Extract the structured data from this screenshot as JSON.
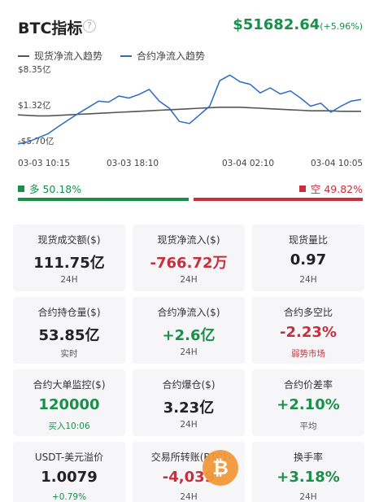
{
  "header": {
    "title": "BTC指标",
    "help_glyph": "?",
    "price": "$51682.64",
    "change": "(+5.96%)"
  },
  "legend": [
    {
      "label": "现货净流入趋势",
      "color": "#555555"
    },
    {
      "label": "合约净流入趋势",
      "color": "#2a6bc4"
    }
  ],
  "chart_data": {
    "type": "line",
    "y_tick_labels": [
      "$8.35亿",
      "$1.32亿",
      "-$5.70亿"
    ],
    "ylim": [
      -5.7,
      8.35
    ],
    "x_tick_labels": [
      "03-03 10:15",
      "03-03 18:10",
      "03-04 02:10",
      "03-04 10:05"
    ],
    "series": [
      {
        "name": "现货净流入趋势",
        "color": "#555555",
        "values": [
          0.5,
          0.4,
          0.3,
          0.3,
          0.4,
          0.5,
          0.6,
          0.7,
          0.8,
          0.9,
          1.0,
          1.1,
          1.2,
          1.3,
          1.4,
          1.5,
          1.6,
          1.7,
          1.8,
          1.9,
          2.0,
          2.0,
          2.0,
          1.9,
          1.8,
          1.7,
          1.6,
          1.5,
          1.4,
          1.3,
          1.3,
          1.3,
          1.2,
          1.2,
          1.2
        ]
      },
      {
        "name": "合约净流入趋势",
        "color": "#2a6bc4",
        "values": [
          -5.2,
          -4.8,
          -4.0,
          -3.2,
          -1.8,
          -0.5,
          0.8,
          2.0,
          3.2,
          3.0,
          4.2,
          3.8,
          4.5,
          5.5,
          3.2,
          1.8,
          -0.8,
          -1.2,
          0.5,
          2.2,
          7.2,
          8.3,
          7.0,
          6.5,
          4.8,
          5.8,
          4.6,
          5.2,
          3.8,
          2.2,
          2.8,
          1.0,
          2.2,
          3.2,
          3.5
        ]
      }
    ]
  },
  "ratio": {
    "long_label": "多 50.18%",
    "short_label": "空 49.82%",
    "long_pct": 50.18,
    "long_color": "#1a8f4a",
    "short_color": "#c62f3c"
  },
  "cards": [
    {
      "label": "现货成交额($)",
      "value": "111.75亿",
      "sub": "24H",
      "value_tone": "neutral",
      "sub_tone": "neutral"
    },
    {
      "label": "现货净流入($)",
      "value": "-766.72万",
      "sub": "24H",
      "value_tone": "neg",
      "sub_tone": "neutral"
    },
    {
      "label": "现货量比",
      "value": "0.97",
      "sub": "24H",
      "value_tone": "neutral",
      "sub_tone": "neutral"
    },
    {
      "label": "合约持仓量($)",
      "value": "53.85亿",
      "sub": "实时",
      "value_tone": "neutral",
      "sub_tone": "neutral"
    },
    {
      "label": "合约净流入($)",
      "value": "+2.6亿",
      "sub": "24H",
      "value_tone": "pos",
      "sub_tone": "neutral"
    },
    {
      "label": "合约多空比",
      "value": "-2.23%",
      "sub": "弱势市场",
      "value_tone": "neg",
      "sub_tone": "neg"
    },
    {
      "label": "合约大单监控($)",
      "value": "120000",
      "sub": "买入10:06",
      "value_tone": "pos",
      "sub_tone": "pos"
    },
    {
      "label": "合约爆仓($)",
      "value": "3.23亿",
      "sub": "24H",
      "value_tone": "neutral",
      "sub_tone": "neutral"
    },
    {
      "label": "合约价差率",
      "value": "+2.10%",
      "sub": "平均",
      "value_tone": "pos",
      "sub_tone": "neutral"
    },
    {
      "label": "USDT-美元溢价",
      "value": "1.0079",
      "sub": "+0.79%",
      "value_tone": "neutral",
      "sub_tone": "pos"
    },
    {
      "label": "交易所转账(BTC)",
      "value": "-4,039",
      "sub": "24H",
      "value_tone": "neg",
      "sub_tone": "neutral"
    },
    {
      "label": "换手率",
      "value": "+3.18%",
      "sub": "24H",
      "value_tone": "pos",
      "sub_tone": "neutral"
    }
  ],
  "watermark": {
    "glyph": "₿",
    "color": "#f2993a"
  }
}
